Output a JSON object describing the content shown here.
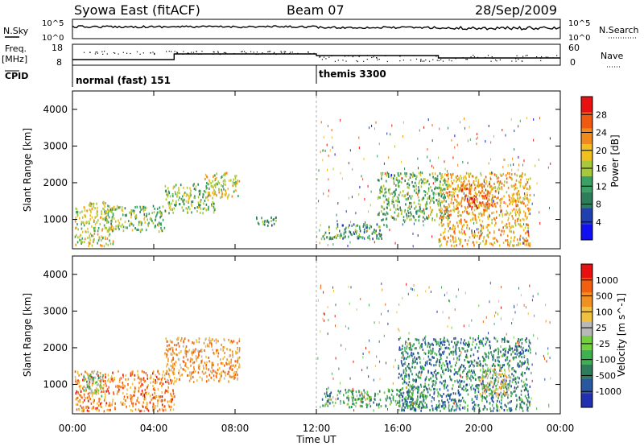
{
  "header": {
    "station": "Syowa East (fitACF)",
    "beam": "Beam 07",
    "date": "28/Sep/2009"
  },
  "summary": {
    "nsky_label": "N.Sky",
    "nsky_top": "10^5",
    "nsky_bottom": "10^0",
    "nsearch_label": "N.Search",
    "nsearch_top": "10^5",
    "nsearch_bottom": "10^0",
    "freq_label": "Freq.",
    "freq_unit": "[MHz]",
    "freq_top": "18",
    "freq_bottom": "8",
    "nave_label": "Nave",
    "nave_top": "60",
    "nave_bottom": "0",
    "cpid_label": "CPID",
    "cpid_modes": [
      {
        "label": "normal (fast) 151",
        "start_hour": 0
      },
      {
        "label": "themis 3300",
        "start_hour": 12
      }
    ]
  },
  "axes": {
    "ylabel": "Slant Range [km]",
    "yticks": [
      "1000",
      "2000",
      "3000",
      "4000"
    ],
    "xticks": [
      "00:00",
      "04:00",
      "08:00",
      "12:00",
      "16:00",
      "20:00",
      "00:00"
    ],
    "xlabel": "Time UT"
  },
  "colorbars": {
    "power": {
      "label": "Power [dB]",
      "ticks": [
        "4",
        "8",
        "12",
        "16",
        "20",
        "24",
        "28"
      ],
      "colors": [
        "#1010f0",
        "#2040b0",
        "#2e7d5a",
        "#3aa064",
        "#a8c83c",
        "#f0c020",
        "#f08a1c",
        "#f05a10",
        "#e81010"
      ]
    },
    "velocity": {
      "label": "Velocity [m s^-1]",
      "ticks": [
        "1000",
        "500",
        "100",
        "25",
        "-25",
        "-100",
        "-500",
        "-1000"
      ],
      "colors": [
        "#2030b0",
        "#2a58a0",
        "#2e7d5a",
        "#3fb050",
        "#70d040",
        "#b8b8b8",
        "#f0c040",
        "#f09020",
        "#f06010",
        "#e81010"
      ]
    }
  },
  "chart_data": [
    {
      "type": "heatmap",
      "title": "Power [dB]",
      "xlabel": "Time UT",
      "ylabel": "Slant Range [km]",
      "xlim_hours": [
        0,
        24
      ],
      "ylim_km": [
        200,
        4500
      ],
      "zlim": [
        0,
        30
      ],
      "blobs": [
        {
          "t0": 0.1,
          "t1": 2.0,
          "r0": 300,
          "r1": 1500,
          "level": 0.55
        },
        {
          "t0": 1.5,
          "t1": 4.5,
          "r0": 700,
          "r1": 1400,
          "level": 0.45
        },
        {
          "t0": 4.5,
          "t1": 7.0,
          "r0": 1200,
          "r1": 2000,
          "level": 0.45
        },
        {
          "t0": 6.5,
          "t1": 8.2,
          "r0": 1600,
          "r1": 2300,
          "level": 0.55
        },
        {
          "t0": 9.0,
          "t1": 10.0,
          "r0": 800,
          "r1": 1100,
          "level": 0.35
        },
        {
          "t0": 12.2,
          "t1": 15.5,
          "r0": 500,
          "r1": 900,
          "level": 0.35
        },
        {
          "t0": 15.0,
          "t1": 18.5,
          "r0": 1000,
          "r1": 2300,
          "level": 0.4
        },
        {
          "t0": 18.0,
          "t1": 22.5,
          "r0": 300,
          "r1": 2300,
          "level": 0.65
        },
        {
          "t0": 19.0,
          "t1": 20.5,
          "r0": 1300,
          "r1": 2000,
          "level": 0.8
        }
      ]
    },
    {
      "type": "heatmap",
      "title": "Velocity [m s^-1]",
      "xlabel": "Time UT",
      "ylabel": "Slant Range [km]",
      "xlim_hours": [
        0,
        24
      ],
      "ylim_km": [
        200,
        4500
      ],
      "zlim": [
        -1000,
        1000
      ],
      "blobs": [
        {
          "t0": 0.1,
          "t1": 5.0,
          "r0": 300,
          "r1": 1400,
          "level": 0.78
        },
        {
          "t0": 4.5,
          "t1": 8.2,
          "r0": 1100,
          "r1": 2300,
          "level": 0.72
        },
        {
          "t0": 0.5,
          "t1": 1.5,
          "r0": 700,
          "r1": 1400,
          "level": 0.45
        },
        {
          "t0": 12.2,
          "t1": 17.5,
          "r0": 400,
          "r1": 900,
          "level": 0.35
        },
        {
          "t0": 16.0,
          "t1": 22.5,
          "r0": 300,
          "r1": 2300,
          "level": 0.25
        },
        {
          "t0": 20.0,
          "t1": 21.5,
          "r0": 700,
          "r1": 1500,
          "level": 0.6
        }
      ]
    }
  ]
}
